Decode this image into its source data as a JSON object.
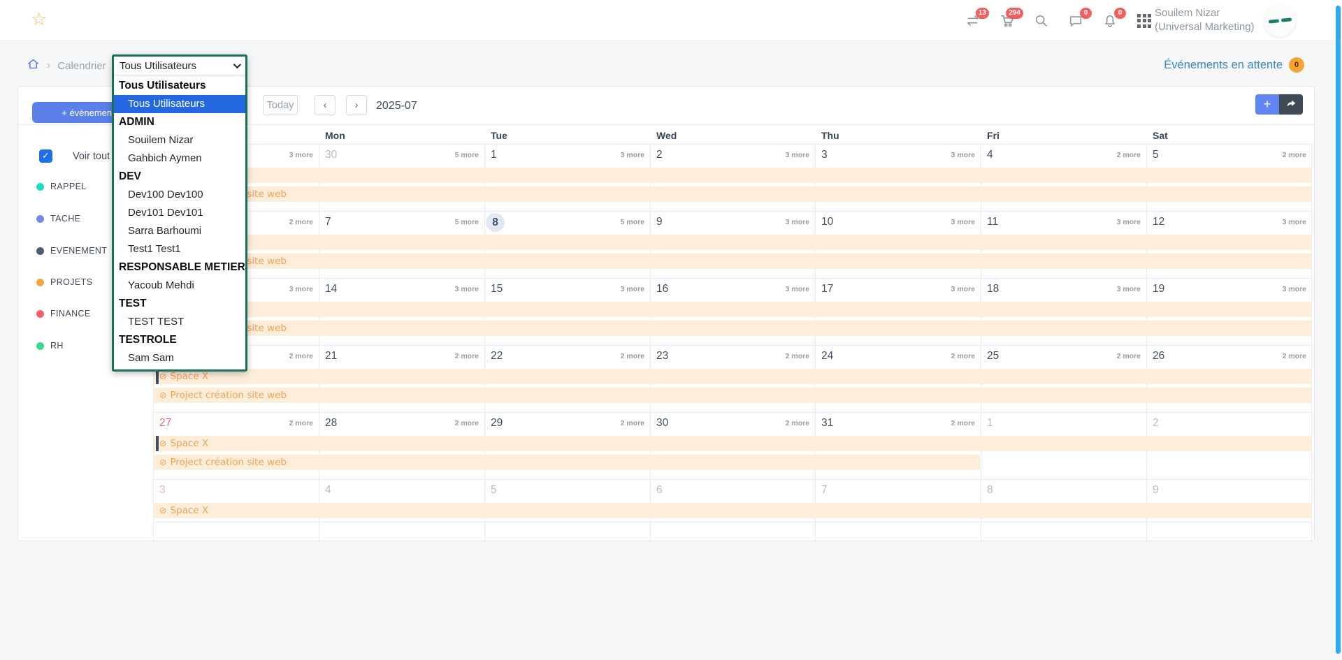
{
  "header": {
    "user_name": "Souilem Nizar",
    "user_org": "(Universal Marketing)",
    "badge_swap": "13",
    "badge_cart": "294",
    "badge_chat": "0",
    "badge_bell": "0"
  },
  "breadcrumb": {
    "page": "Calendrier"
  },
  "pending": {
    "label": "Événements en attente",
    "count": "0"
  },
  "filter": {
    "value": "Tous Utilisateurs",
    "groups": [
      {
        "label": "Tous Utilisateurs",
        "options": [
          {
            "label": "Tous Utilisateurs",
            "selected": true
          }
        ]
      },
      {
        "label": "ADMIN",
        "options": [
          {
            "label": "Souilem Nizar"
          },
          {
            "label": "Gahbich Aymen"
          }
        ]
      },
      {
        "label": "DEV",
        "options": [
          {
            "label": "Dev100 Dev100"
          },
          {
            "label": "Dev101 Dev101"
          },
          {
            "label": "Sarra Barhoumi"
          },
          {
            "label": "Test1 Test1"
          }
        ]
      },
      {
        "label": "RESPONSABLE METIER",
        "options": [
          {
            "label": "Yacoub Mehdi"
          }
        ]
      },
      {
        "label": "TEST",
        "options": [
          {
            "label": "TEST TEST"
          }
        ]
      },
      {
        "label": "TESTROLE",
        "options": [
          {
            "label": "Sam Sam"
          }
        ]
      }
    ]
  },
  "sidebar": {
    "add_event": "+ évènement",
    "see_all": "Voir tout",
    "check_glyph": "✓",
    "categories": [
      {
        "label": "RAPPEL",
        "color": "#1ed9c7"
      },
      {
        "label": "TACHE",
        "color": "#6e8be6"
      },
      {
        "label": "EVENEMENT",
        "color": "#4d5b73"
      },
      {
        "label": "PROJETS",
        "color": "#f7a73f"
      },
      {
        "label": "FINANCE",
        "color": "#f4616c"
      },
      {
        "label": "RH",
        "color": "#3fd68b"
      }
    ]
  },
  "toolbar": {
    "today": "Today",
    "prev": "‹",
    "next": "›",
    "period": "2025-07",
    "add": "+"
  },
  "calendar": {
    "day_headers": [
      "Mon",
      "Tue",
      "Wed",
      "Thu",
      "Fri",
      "Sat"
    ],
    "event_icon": "⊘",
    "weeks": [
      {
        "days": [
          {
            "num": "",
            "more": "3 more",
            "cls": "muted"
          },
          {
            "num": "30",
            "more": "5 more",
            "cls": "muted"
          },
          {
            "num": "1",
            "more": "3 more",
            "cls": ""
          },
          {
            "num": "2",
            "more": "3 more",
            "cls": ""
          },
          {
            "num": "3",
            "more": "3 more",
            "cls": ""
          },
          {
            "num": "4",
            "more": "2 more",
            "cls": ""
          },
          {
            "num": "5",
            "more": "2 more",
            "cls": ""
          }
        ],
        "events": [
          {
            "label": "Space X",
            "bar": true,
            "start": 0,
            "end": 7
          },
          {
            "label": "Project création site web",
            "bar": false,
            "start": 0,
            "end": 7
          }
        ]
      },
      {
        "days": [
          {
            "num": "",
            "more": "2 more",
            "cls": "muted"
          },
          {
            "num": "7",
            "more": "5 more",
            "cls": ""
          },
          {
            "num": "8",
            "more": "5 more",
            "cls": "today"
          },
          {
            "num": "9",
            "more": "3 more",
            "cls": ""
          },
          {
            "num": "10",
            "more": "3 more",
            "cls": ""
          },
          {
            "num": "11",
            "more": "3 more",
            "cls": ""
          },
          {
            "num": "12",
            "more": "3 more",
            "cls": ""
          }
        ],
        "events": [
          {
            "label": "Space X",
            "bar": true,
            "start": 0,
            "end": 7
          },
          {
            "label": "Project création site web",
            "bar": false,
            "start": 0,
            "end": 7
          }
        ]
      },
      {
        "days": [
          {
            "num": "",
            "more": "3 more",
            "cls": "muted"
          },
          {
            "num": "14",
            "more": "3 more",
            "cls": ""
          },
          {
            "num": "15",
            "more": "3 more",
            "cls": ""
          },
          {
            "num": "16",
            "more": "3 more",
            "cls": ""
          },
          {
            "num": "17",
            "more": "3 more",
            "cls": ""
          },
          {
            "num": "18",
            "more": "3 more",
            "cls": ""
          },
          {
            "num": "19",
            "more": "3 more",
            "cls": ""
          }
        ],
        "events": [
          {
            "label": "Space X",
            "bar": true,
            "start": 0,
            "end": 7
          },
          {
            "label": "Project création site web",
            "bar": false,
            "start": 0,
            "end": 7
          }
        ]
      },
      {
        "days": [
          {
            "num": "",
            "more": "2 more",
            "cls": "muted"
          },
          {
            "num": "21",
            "more": "2 more",
            "cls": ""
          },
          {
            "num": "22",
            "more": "2 more",
            "cls": ""
          },
          {
            "num": "23",
            "more": "2 more",
            "cls": ""
          },
          {
            "num": "24",
            "more": "2 more",
            "cls": ""
          },
          {
            "num": "25",
            "more": "2 more",
            "cls": ""
          },
          {
            "num": "26",
            "more": "2 more",
            "cls": ""
          }
        ],
        "events": [
          {
            "label": "Space X",
            "bar": true,
            "start": 0,
            "end": 7
          },
          {
            "label": "Project création site web",
            "bar": false,
            "start": 0,
            "end": 7
          }
        ]
      },
      {
        "days": [
          {
            "num": "27",
            "more": "2 more",
            "cls": "sunday"
          },
          {
            "num": "28",
            "more": "2 more",
            "cls": ""
          },
          {
            "num": "29",
            "more": "2 more",
            "cls": ""
          },
          {
            "num": "30",
            "more": "2 more",
            "cls": ""
          },
          {
            "num": "31",
            "more": "2 more",
            "cls": ""
          },
          {
            "num": "1",
            "more": "",
            "cls": "muted"
          },
          {
            "num": "2",
            "more": "",
            "cls": "muted"
          }
        ],
        "events": [
          {
            "label": "Space X",
            "bar": true,
            "start": 0,
            "end": 7
          },
          {
            "label": "Project création site web",
            "bar": false,
            "start": 0,
            "end": 5
          }
        ]
      },
      {
        "days": [
          {
            "num": "3",
            "more": "",
            "cls": "sunday-muted"
          },
          {
            "num": "4",
            "more": "",
            "cls": "muted"
          },
          {
            "num": "5",
            "more": "",
            "cls": "muted"
          },
          {
            "num": "6",
            "more": "",
            "cls": "muted"
          },
          {
            "num": "7",
            "more": "",
            "cls": "muted"
          },
          {
            "num": "8",
            "more": "",
            "cls": "muted"
          },
          {
            "num": "9",
            "more": "",
            "cls": "muted"
          }
        ],
        "events": [
          {
            "label": "Space X",
            "bar": false,
            "start": 0,
            "end": 7
          }
        ]
      }
    ]
  },
  "colors": {
    "accent_blue": "#5b80ea",
    "event_band_bg": "#fdeeda",
    "event_text": "#f0a155",
    "badge_red": "#f25f5f",
    "pending_badge": "#f6a335",
    "scrollbar_blue": "#2fa9ef",
    "dropdown_border": "#166f58",
    "selected_option_bg": "#2368e1"
  }
}
